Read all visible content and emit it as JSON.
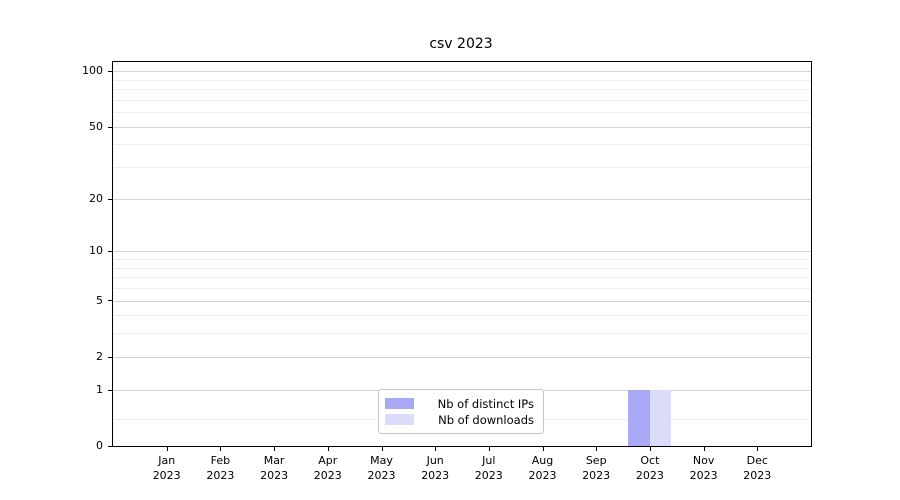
{
  "title": "csv 2023",
  "legend": {
    "items": [
      {
        "label": "Nb of distinct IPs",
        "color": "#a9a9f6"
      },
      {
        "label": "Nb of downloads",
        "color": "#dbdbfa"
      }
    ]
  },
  "chart_data": {
    "type": "bar",
    "title": "csv 2023",
    "categories": [
      "Jan 2023",
      "Feb 2023",
      "Mar 2023",
      "Apr 2023",
      "May 2023",
      "Jun 2023",
      "Jul 2023",
      "Aug 2023",
      "Sep 2023",
      "Oct 2023",
      "Nov 2023",
      "Dec 2023"
    ],
    "series": [
      {
        "name": "Nb of distinct IPs",
        "color": "#a9a9f6",
        "values": [
          0,
          0,
          0,
          0,
          0,
          0,
          0,
          0,
          0,
          1,
          0,
          0
        ]
      },
      {
        "name": "Nb of downloads",
        "color": "#dbdbfa",
        "values": [
          0,
          0,
          0,
          0,
          0,
          0,
          0,
          0,
          0,
          1,
          0,
          0
        ]
      }
    ],
    "xlabel": "",
    "ylabel": "",
    "yscale": "log1p",
    "ylim": [
      0,
      112
    ],
    "yticks": [
      0,
      1,
      2,
      5,
      10,
      20,
      50,
      100
    ],
    "minor_yticks": [
      0.4,
      3,
      4,
      6,
      7,
      8,
      9,
      30,
      40,
      60,
      70,
      80,
      90
    ],
    "grid": true,
    "legend_position": "lower center"
  },
  "colors": {
    "grid_major": "#d4d4d4",
    "grid_minor": "#efefef",
    "spine": "#000000",
    "background": "#ffffff"
  }
}
